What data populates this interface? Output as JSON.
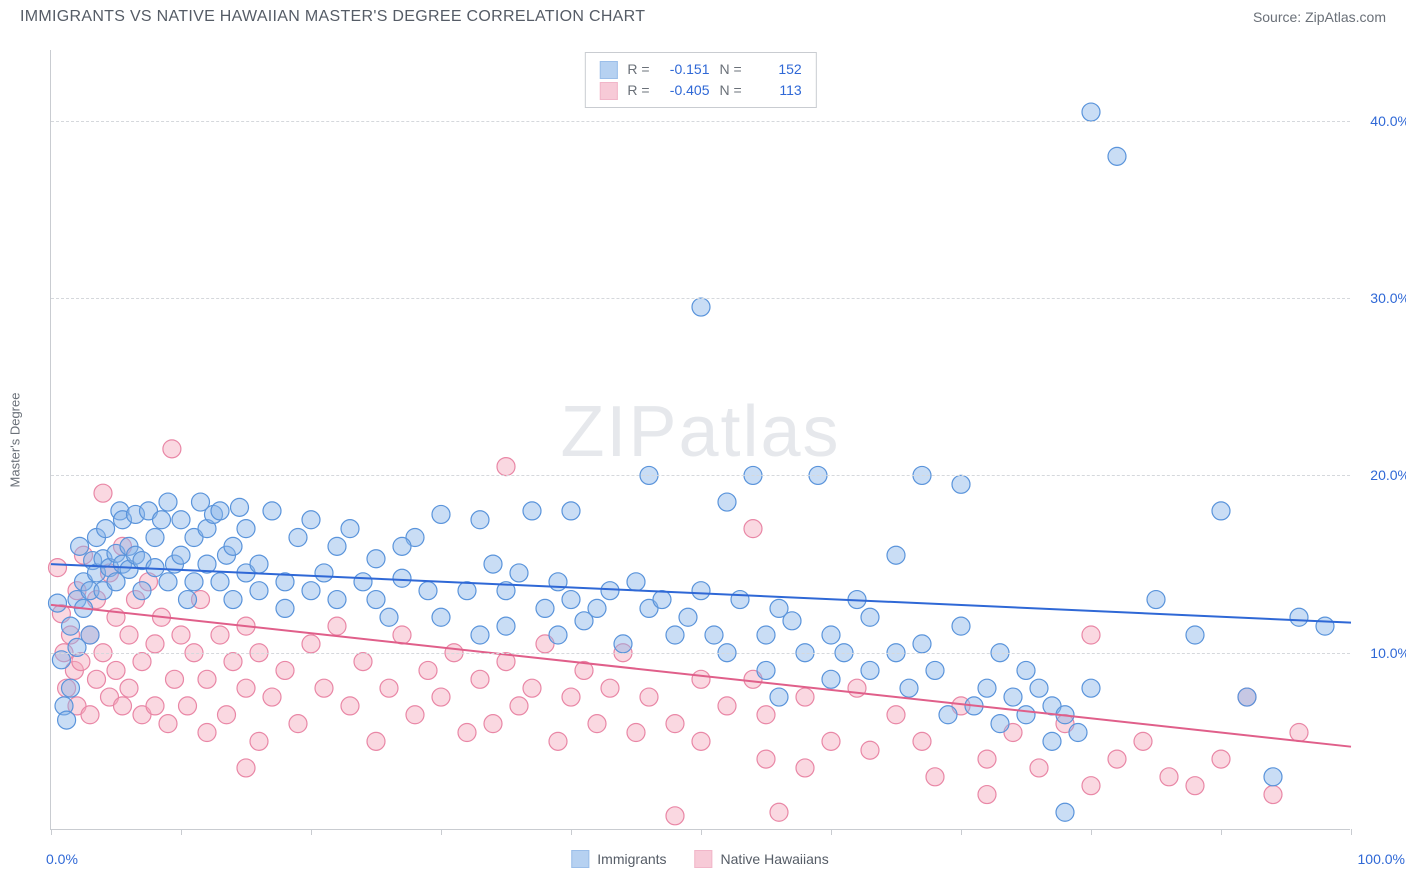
{
  "header": {
    "title": "IMMIGRANTS VS NATIVE HAWAIIAN MASTER'S DEGREE CORRELATION CHART",
    "source": "Source: ZipAtlas.com"
  },
  "watermark": "ZIPatlas",
  "y_axis_label": "Master's Degree",
  "chart": {
    "type": "scatter",
    "xlim": [
      0,
      100
    ],
    "ylim": [
      0,
      44
    ],
    "x_ticks": [
      0,
      10,
      20,
      30,
      40,
      50,
      60,
      70,
      80,
      90,
      100
    ],
    "x_tick_labels": {
      "0": "0.0%",
      "100": "100.0%"
    },
    "y_gridlines": [
      10,
      20,
      30,
      40
    ],
    "y_tick_labels": {
      "10": "10.0%",
      "20": "20.0%",
      "30": "30.0%",
      "40": "40.0%"
    },
    "background_color": "#ffffff",
    "grid_color": "#d5d8dc",
    "axis_color": "#c9ccd1",
    "marker_radius": 9,
    "marker_stroke_width": 1.2,
    "line_width": 2,
    "series": [
      {
        "name": "Immigrants",
        "fill_color": "#87b3e8",
        "fill_opacity": 0.45,
        "stroke_color": "#5a94db",
        "line_color": "#2f68d6",
        "R": "-0.151",
        "N": "152",
        "trend": {
          "x1": 0,
          "y1": 15.0,
          "x2": 100,
          "y2": 11.7
        },
        "points": [
          [
            0.5,
            12.8
          ],
          [
            0.8,
            9.6
          ],
          [
            1.0,
            7.0
          ],
          [
            1.2,
            6.2
          ],
          [
            1.5,
            8.0
          ],
          [
            1.5,
            11.5
          ],
          [
            2.0,
            10.3
          ],
          [
            2.0,
            13.0
          ],
          [
            2.2,
            16.0
          ],
          [
            2.5,
            12.5
          ],
          [
            2.5,
            14.0
          ],
          [
            3.0,
            11.0
          ],
          [
            3.0,
            13.5
          ],
          [
            3.2,
            15.2
          ],
          [
            3.5,
            14.5
          ],
          [
            3.5,
            16.5
          ],
          [
            4.0,
            13.5
          ],
          [
            4.0,
            15.3
          ],
          [
            4.2,
            17.0
          ],
          [
            4.5,
            14.8
          ],
          [
            5.0,
            14.0
          ],
          [
            5.0,
            15.6
          ],
          [
            5.3,
            18.0
          ],
          [
            5.5,
            15.0
          ],
          [
            5.5,
            17.5
          ],
          [
            6.0,
            14.7
          ],
          [
            6.0,
            16.0
          ],
          [
            6.5,
            15.5
          ],
          [
            6.5,
            17.8
          ],
          [
            7.0,
            13.5
          ],
          [
            7.0,
            15.2
          ],
          [
            7.5,
            18.0
          ],
          [
            8.0,
            14.8
          ],
          [
            8.0,
            16.5
          ],
          [
            8.5,
            17.5
          ],
          [
            9.0,
            14.0
          ],
          [
            9.0,
            18.5
          ],
          [
            9.5,
            15.0
          ],
          [
            10.0,
            15.5
          ],
          [
            10.0,
            17.5
          ],
          [
            10.5,
            13.0
          ],
          [
            11.0,
            14.0
          ],
          [
            11.0,
            16.5
          ],
          [
            11.5,
            18.5
          ],
          [
            12.0,
            15.0
          ],
          [
            12.0,
            17.0
          ],
          [
            12.5,
            17.8
          ],
          [
            13.0,
            14.0
          ],
          [
            13.0,
            18.0
          ],
          [
            13.5,
            15.5
          ],
          [
            14.0,
            13.0
          ],
          [
            14.0,
            16.0
          ],
          [
            14.5,
            18.2
          ],
          [
            15.0,
            14.5
          ],
          [
            15.0,
            17.0
          ],
          [
            16.0,
            13.5
          ],
          [
            16.0,
            15.0
          ],
          [
            17.0,
            18.0
          ],
          [
            18.0,
            12.5
          ],
          [
            18.0,
            14.0
          ],
          [
            19.0,
            16.5
          ],
          [
            20.0,
            13.5
          ],
          [
            20.0,
            17.5
          ],
          [
            21.0,
            14.5
          ],
          [
            22.0,
            13.0
          ],
          [
            22.0,
            16.0
          ],
          [
            23.0,
            17.0
          ],
          [
            24.0,
            14.0
          ],
          [
            25.0,
            13.0
          ],
          [
            25.0,
            15.3
          ],
          [
            26.0,
            12.0
          ],
          [
            27.0,
            14.2
          ],
          [
            28.0,
            16.5
          ],
          [
            29.0,
            13.5
          ],
          [
            30.0,
            12.0
          ],
          [
            30.0,
            17.8
          ],
          [
            32.0,
            13.5
          ],
          [
            33.0,
            11.0
          ],
          [
            34.0,
            15.0
          ],
          [
            35.0,
            11.5
          ],
          [
            35.0,
            13.5
          ],
          [
            36.0,
            14.5
          ],
          [
            37.0,
            18.0
          ],
          [
            38.0,
            12.5
          ],
          [
            39.0,
            11.0
          ],
          [
            39.0,
            14.0
          ],
          [
            40.0,
            13.0
          ],
          [
            40.0,
            18.0
          ],
          [
            41.0,
            11.8
          ],
          [
            42.0,
            12.5
          ],
          [
            43.0,
            13.5
          ],
          [
            44.0,
            10.5
          ],
          [
            45.0,
            14.0
          ],
          [
            46.0,
            20.0
          ],
          [
            46.0,
            12.5
          ],
          [
            47.0,
            13.0
          ],
          [
            48.0,
            11.0
          ],
          [
            49.0,
            12.0
          ],
          [
            50.0,
            13.5
          ],
          [
            50.0,
            29.5
          ],
          [
            51.0,
            11.0
          ],
          [
            52.0,
            10.0
          ],
          [
            53.0,
            13.0
          ],
          [
            54.0,
            20.0
          ],
          [
            55.0,
            9.0
          ],
          [
            55.0,
            11.0
          ],
          [
            56.0,
            7.5
          ],
          [
            56.0,
            12.5
          ],
          [
            57.0,
            11.8
          ],
          [
            58.0,
            10.0
          ],
          [
            59.0,
            20.0
          ],
          [
            60.0,
            8.5
          ],
          [
            60.0,
            11.0
          ],
          [
            61.0,
            10.0
          ],
          [
            62.0,
            13.0
          ],
          [
            63.0,
            9.0
          ],
          [
            63.0,
            12.0
          ],
          [
            65.0,
            15.5
          ],
          [
            65.0,
            10.0
          ],
          [
            66.0,
            8.0
          ],
          [
            67.0,
            20.0
          ],
          [
            67.0,
            10.5
          ],
          [
            68.0,
            9.0
          ],
          [
            69.0,
            6.5
          ],
          [
            70.0,
            11.5
          ],
          [
            70.0,
            19.5
          ],
          [
            71.0,
            7.0
          ],
          [
            72.0,
            8.0
          ],
          [
            73.0,
            6.0
          ],
          [
            73.0,
            10.0
          ],
          [
            74.0,
            7.5
          ],
          [
            75.0,
            9.0
          ],
          [
            75.0,
            6.5
          ],
          [
            76.0,
            8.0
          ],
          [
            77.0,
            5.0
          ],
          [
            77.0,
            7.0
          ],
          [
            78.0,
            1.0
          ],
          [
            78.0,
            6.5
          ],
          [
            79.0,
            5.5
          ],
          [
            80.0,
            8.0
          ],
          [
            80.0,
            40.5
          ],
          [
            82.0,
            38.0
          ],
          [
            85.0,
            13.0
          ],
          [
            88.0,
            11.0
          ],
          [
            90.0,
            18.0
          ],
          [
            92.0,
            7.5
          ],
          [
            94.0,
            3.0
          ],
          [
            96.0,
            12.0
          ],
          [
            98.0,
            11.5
          ],
          [
            52.0,
            18.5
          ],
          [
            33.0,
            17.5
          ],
          [
            27.0,
            16.0
          ]
        ]
      },
      {
        "name": "Native Hawaiians",
        "fill_color": "#f3a8bd",
        "fill_opacity": 0.45,
        "stroke_color": "#e987a6",
        "line_color": "#e05f8a",
        "R": "-0.405",
        "N": "113",
        "trend": {
          "x1": 0,
          "y1": 12.7,
          "x2": 100,
          "y2": 4.7
        },
        "points": [
          [
            0.5,
            14.8
          ],
          [
            0.8,
            12.2
          ],
          [
            1.0,
            10.0
          ],
          [
            1.2,
            8.0
          ],
          [
            1.5,
            11.0
          ],
          [
            1.8,
            9.0
          ],
          [
            2.0,
            13.5
          ],
          [
            2.0,
            7.0
          ],
          [
            2.3,
            9.5
          ],
          [
            2.5,
            15.5
          ],
          [
            3.0,
            6.5
          ],
          [
            3.0,
            11.0
          ],
          [
            3.5,
            8.5
          ],
          [
            3.5,
            13.0
          ],
          [
            4.0,
            19.0
          ],
          [
            4.0,
            10.0
          ],
          [
            4.5,
            7.5
          ],
          [
            4.5,
            14.5
          ],
          [
            5.0,
            9.0
          ],
          [
            5.0,
            12.0
          ],
          [
            5.5,
            7.0
          ],
          [
            5.5,
            16.0
          ],
          [
            6.0,
            8.0
          ],
          [
            6.0,
            11.0
          ],
          [
            6.5,
            13.0
          ],
          [
            7.0,
            6.5
          ],
          [
            7.0,
            9.5
          ],
          [
            7.5,
            14.0
          ],
          [
            8.0,
            7.0
          ],
          [
            8.0,
            10.5
          ],
          [
            8.5,
            12.0
          ],
          [
            9.0,
            6.0
          ],
          [
            9.3,
            21.5
          ],
          [
            9.5,
            8.5
          ],
          [
            10.0,
            11.0
          ],
          [
            10.5,
            7.0
          ],
          [
            11.0,
            10.0
          ],
          [
            11.5,
            13.0
          ],
          [
            12.0,
            5.5
          ],
          [
            12.0,
            8.5
          ],
          [
            13.0,
            11.0
          ],
          [
            13.5,
            6.5
          ],
          [
            14.0,
            9.5
          ],
          [
            15.0,
            8.0
          ],
          [
            15.0,
            11.5
          ],
          [
            16.0,
            5.0
          ],
          [
            16.0,
            10.0
          ],
          [
            17.0,
            7.5
          ],
          [
            18.0,
            9.0
          ],
          [
            19.0,
            6.0
          ],
          [
            20.0,
            10.5
          ],
          [
            21.0,
            8.0
          ],
          [
            22.0,
            11.5
          ],
          [
            23.0,
            7.0
          ],
          [
            24.0,
            9.5
          ],
          [
            25.0,
            5.0
          ],
          [
            26.0,
            8.0
          ],
          [
            27.0,
            11.0
          ],
          [
            28.0,
            6.5
          ],
          [
            29.0,
            9.0
          ],
          [
            30.0,
            7.5
          ],
          [
            31.0,
            10.0
          ],
          [
            32.0,
            5.5
          ],
          [
            33.0,
            8.5
          ],
          [
            34.0,
            6.0
          ],
          [
            35.0,
            9.5
          ],
          [
            35.0,
            20.5
          ],
          [
            36.0,
            7.0
          ],
          [
            37.0,
            8.0
          ],
          [
            38.0,
            10.5
          ],
          [
            39.0,
            5.0
          ],
          [
            40.0,
            7.5
          ],
          [
            41.0,
            9.0
          ],
          [
            42.0,
            6.0
          ],
          [
            43.0,
            8.0
          ],
          [
            44.0,
            10.0
          ],
          [
            45.0,
            5.5
          ],
          [
            46.0,
            7.5
          ],
          [
            48.0,
            6.0
          ],
          [
            48.0,
            0.8
          ],
          [
            50.0,
            8.5
          ],
          [
            50.0,
            5.0
          ],
          [
            52.0,
            7.0
          ],
          [
            54.0,
            8.5
          ],
          [
            54.0,
            17.0
          ],
          [
            55.0,
            4.0
          ],
          [
            55.0,
            6.5
          ],
          [
            58.0,
            7.5
          ],
          [
            58.0,
            3.5
          ],
          [
            60.0,
            5.0
          ],
          [
            62.0,
            8.0
          ],
          [
            63.0,
            4.5
          ],
          [
            65.0,
            6.5
          ],
          [
            67.0,
            5.0
          ],
          [
            68.0,
            3.0
          ],
          [
            70.0,
            7.0
          ],
          [
            72.0,
            4.0
          ],
          [
            72.0,
            2.0
          ],
          [
            74.0,
            5.5
          ],
          [
            76.0,
            3.5
          ],
          [
            78.0,
            6.0
          ],
          [
            80.0,
            2.5
          ],
          [
            80.0,
            11.0
          ],
          [
            82.0,
            4.0
          ],
          [
            84.0,
            5.0
          ],
          [
            86.0,
            3.0
          ],
          [
            88.0,
            2.5
          ],
          [
            90.0,
            4.0
          ],
          [
            92.0,
            7.5
          ],
          [
            94.0,
            2.0
          ],
          [
            96.0,
            5.5
          ],
          [
            56.0,
            1.0
          ],
          [
            15.0,
            3.5
          ]
        ]
      }
    ]
  },
  "legend_labels": {
    "r_prefix": "R =",
    "n_prefix": "N =",
    "series1": "Immigrants",
    "series2": "Native Hawaiians"
  }
}
